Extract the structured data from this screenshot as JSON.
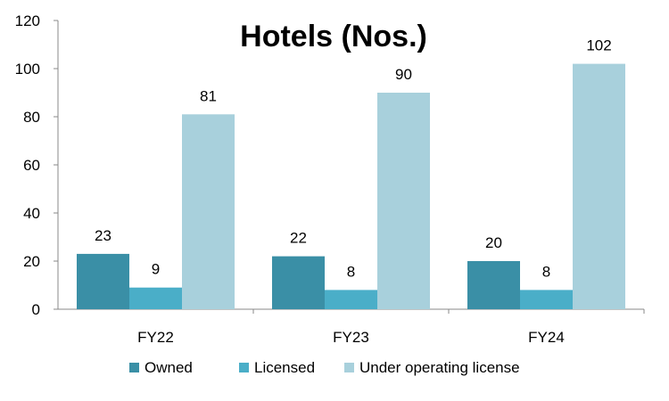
{
  "chart_data": {
    "type": "bar",
    "title": "Hotels (Nos.)",
    "categories": [
      "FY22",
      "FY23",
      "FY24"
    ],
    "series": [
      {
        "name": "Owned",
        "values": [
          23,
          22,
          20
        ],
        "color": "#3a8fa6"
      },
      {
        "name": "Licensed",
        "values": [
          9,
          8,
          8
        ],
        "color": "#4aaec8"
      },
      {
        "name": "Under operating license",
        "values": [
          81,
          90,
          102
        ],
        "color": "#a8d0dc"
      }
    ],
    "ylim": [
      0,
      120
    ],
    "yticks": [
      "0",
      "20",
      "40",
      "60",
      "80",
      "100",
      "120"
    ],
    "grid": false,
    "legend_position": "bottom"
  }
}
